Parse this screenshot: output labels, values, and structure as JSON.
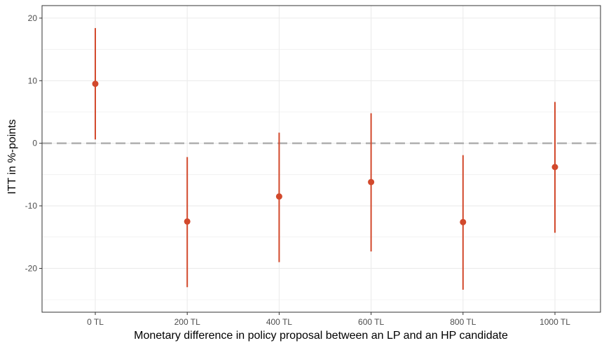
{
  "chart_data": {
    "type": "scatter",
    "subtype": "point-range",
    "title": "",
    "xlabel": "Monetary difference in policy proposal between an LP and an HP candidate",
    "ylabel": "ITT in %-points",
    "categories": [
      "0 TL",
      "200 TL",
      "400 TL",
      "600 TL",
      "800 TL",
      "1000 TL"
    ],
    "y_ticks": [
      20,
      10,
      0,
      -10,
      -20
    ],
    "y_tick_labels": [
      "20",
      "10",
      "0",
      "-10",
      "-20"
    ],
    "ylim": [
      -27,
      22
    ],
    "reference_line": 0,
    "grid": true,
    "points": [
      {
        "x": "0 TL",
        "estimate": 9.5,
        "lower": 0.6,
        "upper": 18.4
      },
      {
        "x": "200 TL",
        "estimate": -12.5,
        "lower": -23.0,
        "upper": -2.2
      },
      {
        "x": "400 TL",
        "estimate": -8.5,
        "lower": -19.0,
        "upper": 1.7
      },
      {
        "x": "600 TL",
        "estimate": -6.2,
        "lower": -17.3,
        "upper": 4.8
      },
      {
        "x": "800 TL",
        "estimate": -12.6,
        "lower": -23.4,
        "upper": -1.9
      },
      {
        "x": "1000 TL",
        "estimate": -3.8,
        "lower": -14.3,
        "upper": 6.6
      }
    ],
    "colors": {
      "points": "#d2492c",
      "reference_line": "#b3b3b3",
      "grid": "#ebebeb",
      "panel_border": "#333333"
    }
  }
}
